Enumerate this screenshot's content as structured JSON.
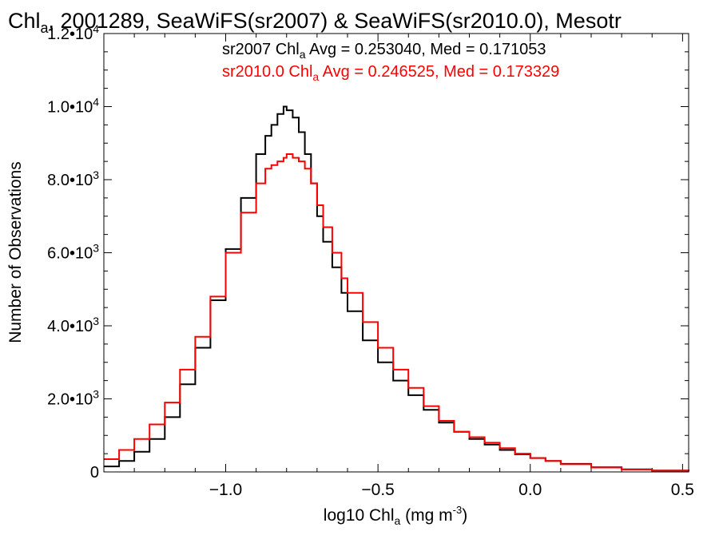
{
  "chart_data": {
    "type": "line",
    "title": {
      "pre": "Chl",
      "sub": "a",
      "post": ", 2001289, SeaWiFS(sr2007) & SeaWiFS(sr2010.0), Mesotr"
    },
    "xlabel": {
      "pre": "log10 Chl",
      "sub": "a",
      "post": " (mg m",
      "sup": "-3",
      "end": ")"
    },
    "ylabel": "Number of Observations",
    "xlim": [
      -1.4,
      0.52
    ],
    "ylim": [
      0,
      12000
    ],
    "x_ticks": [
      {
        "value": -1.0,
        "label": "−1.0"
      },
      {
        "value": -0.5,
        "label": "−0.5"
      },
      {
        "value": 0.0,
        "label": "0.0"
      },
      {
        "value": 0.5,
        "label": "0.5"
      }
    ],
    "y_ticks": [
      {
        "value": 0,
        "mant": "0",
        "exp": ""
      },
      {
        "value": 2000,
        "mant": "2.0•10",
        "exp": "3"
      },
      {
        "value": 4000,
        "mant": "4.0•10",
        "exp": "3"
      },
      {
        "value": 6000,
        "mant": "6.0•10",
        "exp": "3"
      },
      {
        "value": 8000,
        "mant": "8.0•10",
        "exp": "3"
      },
      {
        "value": 10000,
        "mant": "1.0•10",
        "exp": "4"
      },
      {
        "value": 12000,
        "mant": "1.2•10",
        "exp": "4"
      }
    ],
    "annotations": [
      {
        "color": "#000000",
        "pre": "sr2007 Chl",
        "sub": "a",
        "post": " Avg = 0.253040, Med = 0.171053"
      },
      {
        "color": "#ff0000",
        "pre": "sr2010.0 Chl",
        "sub": "a",
        "post": " Avg = 0.246525, Med = 0.173329"
      }
    ],
    "grid": false,
    "series": [
      {
        "color": "#000000",
        "x": [
          -1.4,
          -1.35,
          -1.3,
          -1.25,
          -1.2,
          -1.15,
          -1.1,
          -1.05,
          -1.0,
          -0.95,
          -0.9,
          -0.87,
          -0.85,
          -0.83,
          -0.81,
          -0.8,
          -0.78,
          -0.76,
          -0.74,
          -0.72,
          -0.7,
          -0.68,
          -0.65,
          -0.62,
          -0.6,
          -0.55,
          -0.5,
          -0.45,
          -0.4,
          -0.35,
          -0.3,
          -0.25,
          -0.2,
          -0.15,
          -0.1,
          -0.05,
          0.0,
          0.05,
          0.1,
          0.2,
          0.3,
          0.4,
          0.52
        ],
        "y": [
          150,
          300,
          550,
          900,
          1500,
          2400,
          3400,
          4700,
          6100,
          7500,
          8700,
          9200,
          9500,
          9800,
          10000,
          9900,
          9700,
          9300,
          8700,
          7900,
          7000,
          6300,
          5600,
          4900,
          4400,
          3600,
          3000,
          2500,
          2100,
          1700,
          1350,
          1100,
          900,
          750,
          600,
          480,
          380,
          300,
          220,
          130,
          70,
          40,
          20
        ]
      },
      {
        "color": "#ff0000",
        "x": [
          -1.4,
          -1.35,
          -1.3,
          -1.25,
          -1.2,
          -1.15,
          -1.1,
          -1.05,
          -1.0,
          -0.95,
          -0.9,
          -0.87,
          -0.85,
          -0.83,
          -0.81,
          -0.8,
          -0.78,
          -0.76,
          -0.74,
          -0.72,
          -0.7,
          -0.68,
          -0.65,
          -0.62,
          -0.6,
          -0.55,
          -0.5,
          -0.45,
          -0.4,
          -0.35,
          -0.3,
          -0.25,
          -0.2,
          -0.15,
          -0.1,
          -0.05,
          0.0,
          0.05,
          0.1,
          0.2,
          0.3,
          0.4,
          0.52
        ],
        "y": [
          350,
          600,
          900,
          1300,
          1900,
          2800,
          3700,
          4800,
          6000,
          7100,
          7900,
          8300,
          8400,
          8500,
          8600,
          8700,
          8600,
          8500,
          8300,
          7900,
          7300,
          6700,
          6000,
          5300,
          4900,
          4100,
          3400,
          2800,
          2300,
          1800,
          1400,
          1100,
          950,
          800,
          650,
          500,
          380,
          300,
          210,
          120,
          65,
          35,
          15
        ]
      }
    ]
  }
}
